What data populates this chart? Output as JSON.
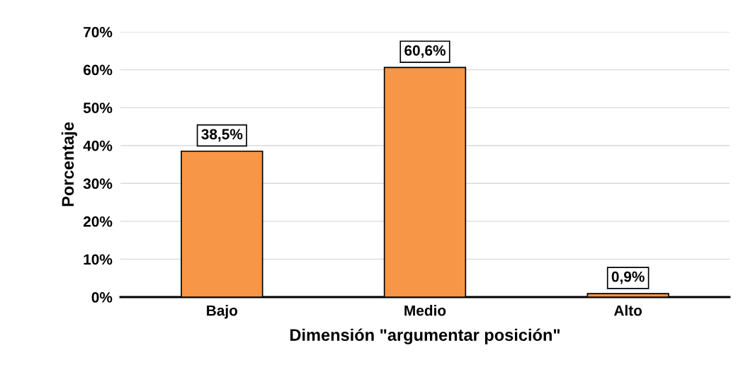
{
  "chart_data": {
    "type": "bar",
    "xlabel": "Dimensión \"argumentar posición\"",
    "ylabel": "Porcentaje",
    "categories": [
      "Bajo",
      "Medio",
      "Alto"
    ],
    "values": [
      38.5,
      60.6,
      0.9
    ],
    "color": "#f79646",
    "value_labels": [
      "38,5%",
      "60,6%",
      "0,9%"
    ],
    "ylim": [
      0,
      70
    ],
    "yticks": [
      {
        "value": 0,
        "label": "0%"
      },
      {
        "value": 10,
        "label": "10%"
      },
      {
        "value": 20,
        "label": "20%"
      },
      {
        "value": 30,
        "label": "30%"
      },
      {
        "value": 40,
        "label": "40%"
      },
      {
        "value": 50,
        "label": "50%"
      },
      {
        "value": 60,
        "label": "60%"
      },
      {
        "value": 70,
        "label": "70%"
      }
    ],
    "grid": "y",
    "legend": false
  }
}
